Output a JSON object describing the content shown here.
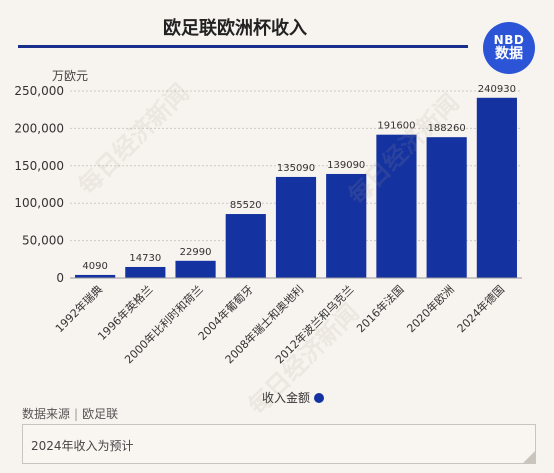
{
  "title": "欧足联欧洲杯收入",
  "logo": {
    "line1": "NBD",
    "line2": "数据"
  },
  "unit": "万欧元",
  "legend_label": "收入金额",
  "source": {
    "label": "数据来源",
    "value": "欧足联"
  },
  "note": "2024年收入为预计",
  "watermark": "每日经济新闻",
  "colors": {
    "bar": "#1533a0",
    "accent": "#1a2f8c",
    "logo": "#2b55d6",
    "background": "#f7f3ee"
  },
  "chart_data": {
    "type": "bar",
    "categories": [
      "1992年瑞典",
      "1996年英格兰",
      "2000年比利时和荷兰",
      "2004年葡萄牙",
      "2008年瑞士和奥地利",
      "2012年波兰和乌克兰",
      "2016年法国",
      "2020年欧洲",
      "2024年德国"
    ],
    "series": [
      {
        "name": "收入金额",
        "values": [
          4090,
          14730,
          22990,
          85520,
          135090,
          139090,
          191600,
          188260,
          240930
        ]
      }
    ],
    "ylabel": "万欧元",
    "ylim": [
      0,
      250000
    ],
    "yticks": [
      0,
      50000,
      100000,
      150000,
      200000,
      250000
    ],
    "ytick_labels": [
      "0",
      "50,000",
      "100,000",
      "150,000",
      "200,000",
      "250,000"
    ],
    "grid": true,
    "legend_position": "bottom"
  }
}
